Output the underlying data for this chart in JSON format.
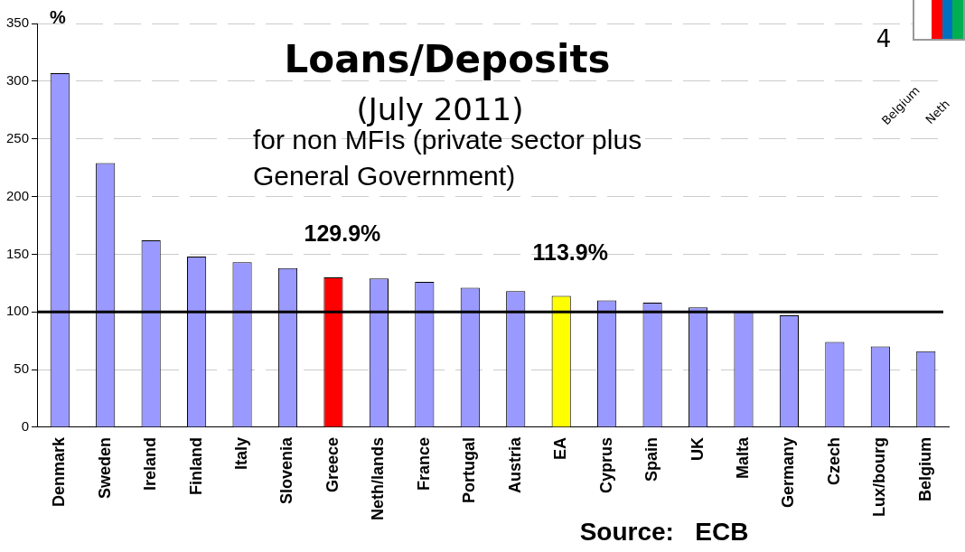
{
  "chart_data": {
    "type": "bar",
    "title": "Loans/Deposits",
    "subtitle": "(July 2011)",
    "ylabel": "%",
    "categories": [
      "Denmark",
      "Sweden",
      "Ireland",
      "Finland",
      "Italy",
      "Slovenia",
      "Greece",
      "Neth/lands",
      "France",
      "Portugal",
      "Austria",
      "EA",
      "Cyprus",
      "Spain",
      "UK",
      "Malta",
      "Germany",
      "Czech",
      "Lux/bourg",
      "Belgium"
    ],
    "values": [
      307,
      229,
      162,
      148,
      143,
      138,
      129.9,
      129,
      126,
      121,
      118,
      113.9,
      110,
      108,
      104,
      100,
      97,
      74,
      70,
      66
    ],
    "colors": [
      "#9999ff",
      "#9999ff",
      "#9999ff",
      "#9999ff",
      "#9999ff",
      "#9999ff",
      "#ff0000",
      "#9999ff",
      "#9999ff",
      "#9999ff",
      "#9999ff",
      "#ffff00",
      "#9999ff",
      "#9999ff",
      "#9999ff",
      "#9999ff",
      "#9999ff",
      "#9999ff",
      "#9999ff",
      "#9999ff"
    ],
    "ylim": [
      0,
      350
    ],
    "yticks": [
      0,
      50,
      100,
      150,
      200,
      250,
      300,
      350
    ],
    "grid": "y",
    "legend": false,
    "ref_lines": [
      {
        "axis": "y",
        "value": 100,
        "color": "#000000"
      }
    ],
    "annotations": [
      "for non MFIs (private sector plus General Government)",
      {
        "text": "129.9%",
        "x": "Greece",
        "y": 129.9
      },
      {
        "text": "113.9%",
        "x": "EA",
        "y": 113.9
      },
      "Source:   ECB",
      "4",
      "Belgium",
      "Neth"
    ]
  }
}
